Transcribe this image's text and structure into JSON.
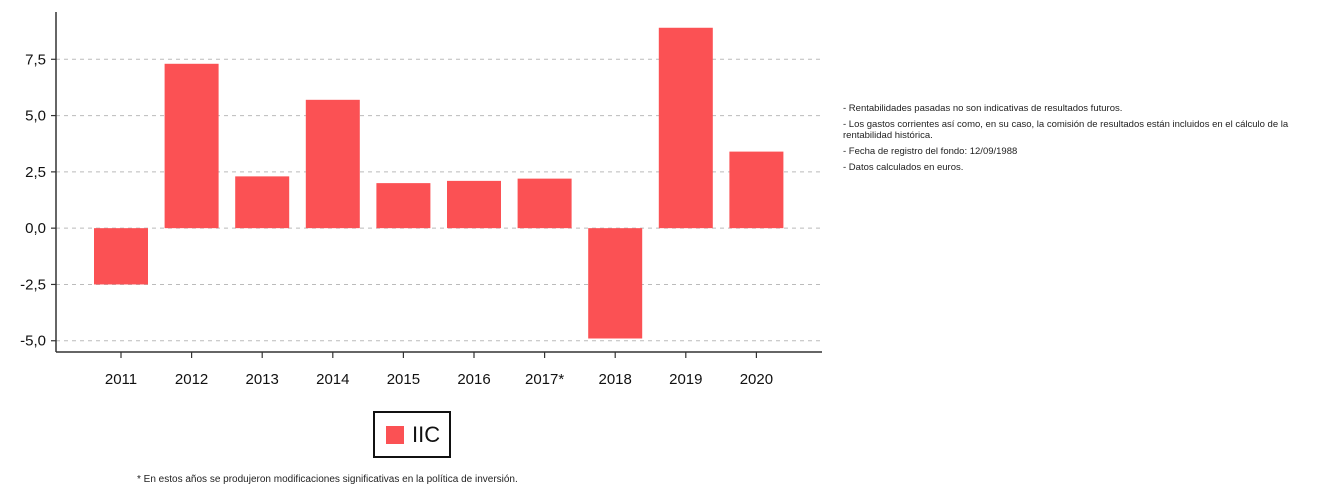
{
  "chart_data": {
    "type": "bar",
    "categories": [
      "2011",
      "2012",
      "2013",
      "2014",
      "2015",
      "2016",
      "2017*",
      "2018",
      "2019",
      "2020"
    ],
    "series": [
      {
        "name": "IIC",
        "values": [
          -2.5,
          7.3,
          2.3,
          5.7,
          2.0,
          2.1,
          2.2,
          -4.9,
          8.9,
          3.4
        ]
      }
    ],
    "ylim": [
      -5.5,
      9.6
    ],
    "yticks": [
      -5.0,
      -2.5,
      0.0,
      2.5,
      5.0,
      7.5
    ],
    "ytick_labels": [
      "-5,0",
      "-2,5",
      "0,0",
      "2,5",
      "5,0",
      "7,5"
    ],
    "grid": true,
    "legend_position": "bottom",
    "colors": {
      "bar": "#fb5154",
      "axis": "#333333",
      "grid": "#bbbbbb"
    }
  },
  "notes": [
    "- Rentabilidades pasadas no son indicativas de resultados futuros.",
    "- Los gastos corrientes así como, en su caso, la comisión de resultados están incluidos en el cálculo de la rentabilidad histórica.",
    "- Fecha de registro del fondo: 12/09/1988",
    "- Datos calculados en euros."
  ],
  "legend": {
    "label": "IIC"
  },
  "footnote": "* En estos años se produjeron modificaciones significativas en la política de inversión."
}
